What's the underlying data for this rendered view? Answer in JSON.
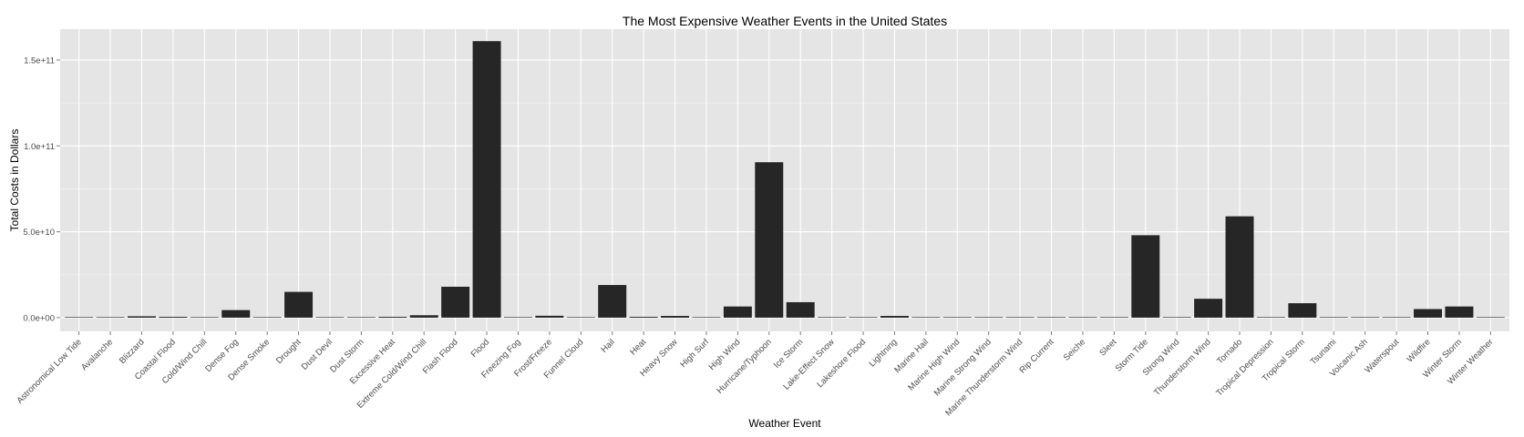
{
  "chart_data": {
    "type": "bar",
    "title": "The Most Expensive Weather Events in the United States",
    "xlabel": "Weather Event",
    "ylabel": "Total Costs in Dollars",
    "ylim": [
      -8000000000,
      168000000000
    ],
    "yticks": [
      0,
      50000000000,
      100000000000,
      150000000000
    ],
    "ytick_labels": [
      "0.0e+00",
      "5.0e+10",
      "1.0e+11",
      "1.5e+11"
    ],
    "grid": true,
    "legend": "none",
    "colors": {
      "panel": "#e5e5e5",
      "grid_major": "#ffffff",
      "grid_minor": "#f2f2f2",
      "bar": "#262626",
      "tick_text": "#4d4d4d"
    },
    "categories": [
      "Astronomical Low Tide",
      "Avalanche",
      "Blizzard",
      "Coastal Flood",
      "Cold/Wind Chill",
      "Dense Fog",
      "Dense Smoke",
      "Drought",
      "Dust Devil",
      "Dust Storm",
      "Excessive Heat",
      "Extreme Cold/Wind Chill",
      "Flash Flood",
      "Flood",
      "Freezing Fog",
      "Frost/Freeze",
      "Funnel Cloud",
      "Hail",
      "Heat",
      "Heavy Snow",
      "High Surf",
      "High Wind",
      "Hurricane/Typhoon",
      "Ice Storm",
      "Lake-Effect Snow",
      "Lakeshore Flood",
      "Lightning",
      "Marine Hail",
      "Marine High Wind",
      "Marine Strong Wind",
      "Marine Thunderstorm Wind",
      "Rip Current",
      "Seiche",
      "Sleet",
      "Storm Tide",
      "Strong Wind",
      "Thunderstorm Wind",
      "Tornado",
      "Tropical Depression",
      "Tropical Storm",
      "Tsunami",
      "Volcanic Ash",
      "Waterspout",
      "Wildfire",
      "Winter Storm",
      "Winter Weather"
    ],
    "values": [
      10000000,
      8000000,
      800000000,
      500000000,
      200000000,
      4400000000,
      100000,
      15000000000,
      6000000,
      9000000,
      500000000,
      1400000000,
      18000000000,
      161000000000,
      2000000,
      1100000000,
      100000,
      19000000000,
      500000000,
      1000000000,
      100000000,
      6500000000,
      90500000000,
      9000000000,
      40000000,
      7500000,
      1000000000,
      4000000,
      1300000,
      400000,
      300000,
      160000,
      1000000,
      70000,
      48000000000,
      300000000,
      11000000000,
      59000000000,
      2000000,
      8400000000,
      145000000,
      500000,
      60000000,
      5000000000,
      6500000000,
      40000000
    ]
  }
}
